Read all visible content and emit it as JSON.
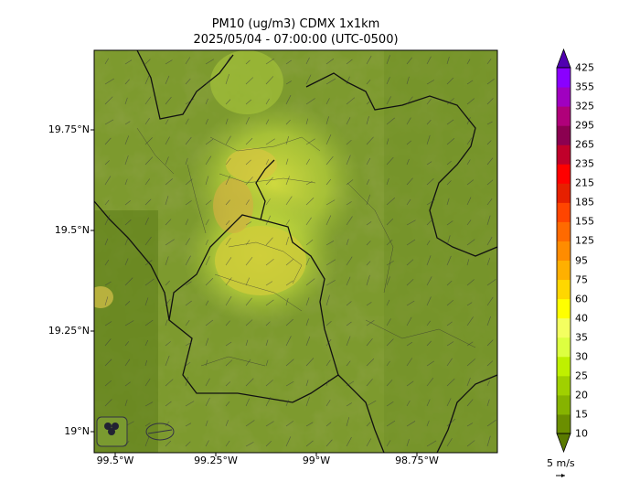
{
  "title": "PM10 (ug/m3) CDMX 1x1km",
  "subtitle": "2025/05/04 - 07:00:00 (UTC-0500)",
  "lat_ticks": [
    "19.75°N",
    "19.5°N",
    "19.25°N",
    "19°N"
  ],
  "lon_ticks": [
    "99.5°W",
    "99.25°W",
    "99°W",
    "98.75°W"
  ],
  "colorbar": {
    "levels": [
      "10",
      "15",
      "20",
      "25",
      "30",
      "35",
      "40",
      "60",
      "75",
      "95",
      "125",
      "155",
      "185",
      "215",
      "235",
      "265",
      "295",
      "325",
      "355",
      "425"
    ],
    "colors": [
      "#6b8e00",
      "#86b300",
      "#a0d000",
      "#bff000",
      "#ddff40",
      "#f4ff60",
      "#ffff00",
      "#ffd700",
      "#ffb000",
      "#ff8c00",
      "#ff6a00",
      "#ff4500",
      "#e62000",
      "#ff0000",
      "#c0002a",
      "#8b0050",
      "#b0007a",
      "#a000c0",
      "#8a00ff",
      "#6000d0"
    ],
    "under_color": "#5a7a00",
    "over_color": "#5000b0"
  },
  "wind_reference": "5 m/s",
  "logos": [
    "SEDEMA",
    "SIMAT"
  ]
}
